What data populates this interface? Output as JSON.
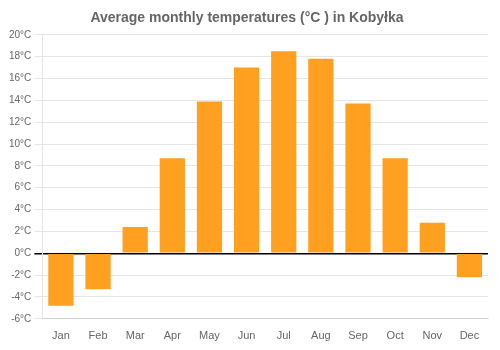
{
  "chart_data": {
    "type": "bar",
    "title": "Average monthly temperatures (°C ) in Kobyłka",
    "categories": [
      "Jan",
      "Feb",
      "Mar",
      "Apr",
      "May",
      "Jun",
      "Jul",
      "Aug",
      "Sep",
      "Oct",
      "Nov",
      "Dec"
    ],
    "values": [
      -4.8,
      -3.3,
      2.4,
      8.7,
      13.9,
      17.0,
      18.5,
      17.8,
      13.7,
      8.7,
      2.8,
      -2.2
    ],
    "color": "#FFA020",
    "ylim": [
      -6,
      20
    ],
    "yticks": [
      {
        "value": -6,
        "label": "-6°C"
      },
      {
        "value": -4,
        "label": "-4°C"
      },
      {
        "value": -2,
        "label": "-2°C"
      },
      {
        "value": 0,
        "label": "0°C"
      },
      {
        "value": 2,
        "label": "2°C"
      },
      {
        "value": 4,
        "label": "4°C"
      },
      {
        "value": 6,
        "label": "6°C"
      },
      {
        "value": 8,
        "label": "8°C"
      },
      {
        "value": 10,
        "label": "10°C"
      },
      {
        "value": 12,
        "label": "12°C"
      },
      {
        "value": 14,
        "label": "14°C"
      },
      {
        "value": 16,
        "label": "16°C"
      },
      {
        "value": 18,
        "label": "18°C"
      },
      {
        "value": 20,
        "label": "20°C"
      }
    ],
    "grid": true
  }
}
